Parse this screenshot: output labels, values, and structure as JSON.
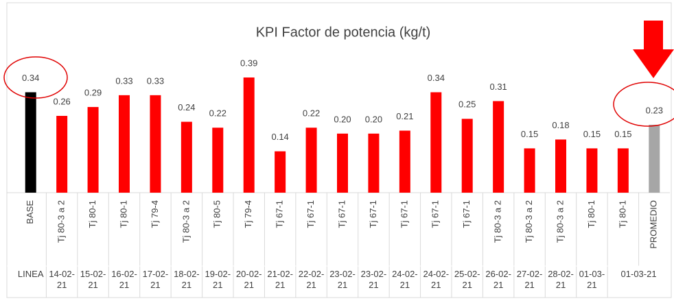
{
  "chart_data": {
    "type": "bar",
    "title": "KPI Factor de potencia (kg/t)",
    "categories": [
      "BASE",
      "Tj 80-3 a 2",
      "Tj 80-1",
      "Tj 80-1",
      "Tj 79-4",
      "Tj 80-3 a 2",
      "Tj 80-5",
      "Tj 79-4",
      "Tj 67-1",
      "Tj 67-1",
      "Tj 67-1",
      "Tj 67-1",
      "Tj 67-1",
      "Tj 67-1",
      "Tj 67-1",
      "Tj 80-3 a 2",
      "Tj 80-3 a 2",
      "Tj 80-3 a 2",
      "Tj 80-1",
      "Tj 80-1",
      "PROMEDIO"
    ],
    "groups": [
      "LINEA",
      "14-02-21",
      "15-02-21",
      "16-02-21",
      "17-02-21",
      "18-02-21",
      "19-02-21",
      "20-02-21",
      "21-02-21",
      "22-02-21",
      "23-02-21",
      "23-02-21",
      "24-02-21",
      "24-02-21",
      "25-02-21",
      "26-02-21",
      "27-02-21",
      "28-02-21",
      "01-03-21",
      "01-03-21",
      null
    ],
    "values": [
      0.34,
      0.26,
      0.29,
      0.33,
      0.33,
      0.24,
      0.22,
      0.39,
      0.14,
      0.22,
      0.2,
      0.2,
      0.21,
      0.34,
      0.25,
      0.31,
      0.15,
      0.18,
      0.15,
      0.15,
      0.23
    ],
    "value_labels": [
      "0.34",
      "0.26",
      "0.29",
      "0.33",
      "0.33",
      "0.24",
      "0.22",
      "0.39",
      "0.14",
      "0.22",
      "0.20",
      "0.20",
      "0.21",
      "0.34",
      "0.25",
      "0.31",
      "0.15",
      "0.18",
      "0.15",
      "0.15",
      "0.23"
    ],
    "colors": [
      "#000000",
      "#ff0000",
      "#ff0000",
      "#ff0000",
      "#ff0000",
      "#ff0000",
      "#ff0000",
      "#ff0000",
      "#ff0000",
      "#ff0000",
      "#ff0000",
      "#ff0000",
      "#ff0000",
      "#ff0000",
      "#ff0000",
      "#ff0000",
      "#ff0000",
      "#ff0000",
      "#ff0000",
      "#ff0000",
      "#a6a6a6"
    ]
  }
}
